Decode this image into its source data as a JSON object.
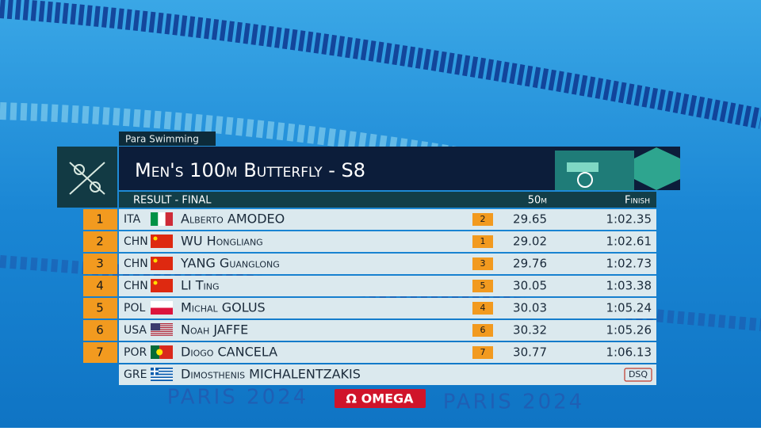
{
  "header": {
    "category": "Para Swimming",
    "title": "Men's 100m Butterfly - S8",
    "subtitle": "Result - Final",
    "columns": [
      "50m",
      "Finish"
    ]
  },
  "table": {
    "rows": [
      {
        "rank": 1,
        "country": "ITA",
        "name": "Alberto AMODEO",
        "split_rank": 2,
        "split": 29.65,
        "finish": "1:02.35"
      },
      {
        "rank": 2,
        "country": "CHN",
        "name": "WU Hongliang",
        "split_rank": 1,
        "split": 29.02,
        "finish": "1:02.61"
      },
      {
        "rank": 3,
        "country": "CHN",
        "name": "YANG Guanglong",
        "split_rank": 3,
        "split": 29.76,
        "finish": "1:02.73"
      },
      {
        "rank": 4,
        "country": "CHN",
        "name": "LI Ting",
        "split_rank": 5,
        "split": 30.05,
        "finish": "1:03.38"
      },
      {
        "rank": 5,
        "country": "POL",
        "name": "Michal GOLUS",
        "split_rank": 4,
        "split": 30.03,
        "finish": "1:05.24"
      },
      {
        "rank": 6,
        "country": "USA",
        "name": "Noah JAFFE",
        "split_rank": 6,
        "split": 30.32,
        "finish": "1:05.26"
      },
      {
        "rank": 7,
        "country": "POR",
        "name": "Diogo CANCELA",
        "split_rank": 7,
        "split": 30.77,
        "finish": "1:06.13"
      }
    ],
    "disqualified": {
      "country": "GRE",
      "name": "Dimosthenis MICHALENTZAKIS",
      "status": "DSQ"
    }
  },
  "footer": {
    "games": "PARIS 2024",
    "sponsor": "Ω OMEGA"
  }
}
